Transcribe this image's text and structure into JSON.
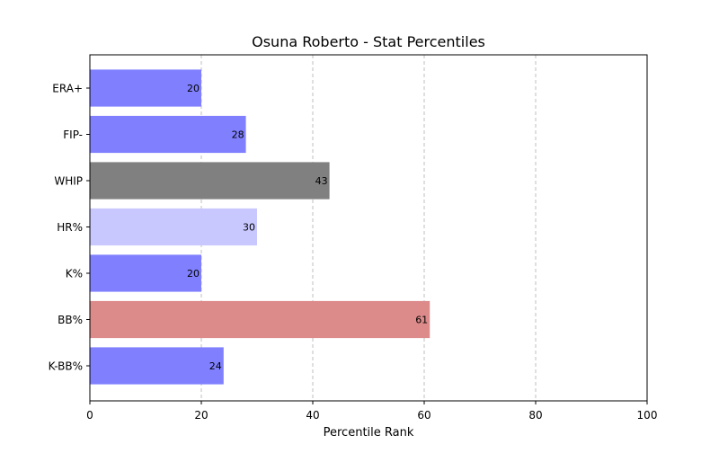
{
  "chart_data": {
    "type": "bar",
    "orientation": "horizontal",
    "title": "Osuna Roberto - Stat Percentiles",
    "xlabel": "Percentile Rank",
    "ylabel": "",
    "xlim": [
      0,
      100
    ],
    "xticks": [
      0,
      20,
      40,
      60,
      80,
      100
    ],
    "grid": "x-dashed",
    "categories": [
      "ERA+",
      "FIP-",
      "WHIP",
      "HR%",
      "K%",
      "BB%",
      "K-BB%"
    ],
    "values": [
      20,
      28,
      43,
      30,
      20,
      61,
      24
    ],
    "colors": [
      "#8080ff",
      "#8080ff",
      "#808080",
      "#c8c8ff",
      "#8080ff",
      "#dc8a8a",
      "#8080ff"
    ]
  }
}
